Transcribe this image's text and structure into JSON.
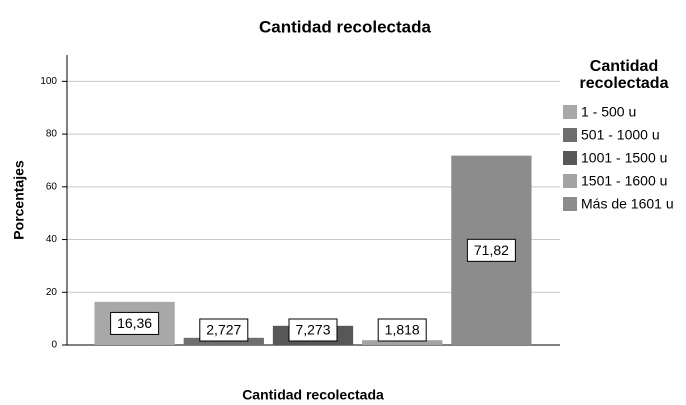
{
  "chart_data": {
    "type": "bar",
    "title": "Cantidad recolectada",
    "x_label": "Cantidad recolectada",
    "y_label": "Porcentajes",
    "legend_title": "Cantidad recolectada",
    "categories": [
      "1 - 500 u",
      "501 - 1000 u",
      "1001 - 1500 u",
      "1501 - 1600 u",
      "Más de 1601 u"
    ],
    "values": [
      16.36,
      2.727,
      7.273,
      1.818,
      71.82
    ],
    "value_labels": [
      "16,36",
      "2,727",
      "7,273",
      "1,818",
      "71,82"
    ],
    "colors": [
      "#a8a8a8",
      "#6e6e6e",
      "#575757",
      "#a3a3a3",
      "#8c8c8c"
    ],
    "ylim": [
      0,
      110
    ],
    "yticks": [
      0,
      20,
      40,
      60,
      80,
      100
    ],
    "grid": true
  }
}
